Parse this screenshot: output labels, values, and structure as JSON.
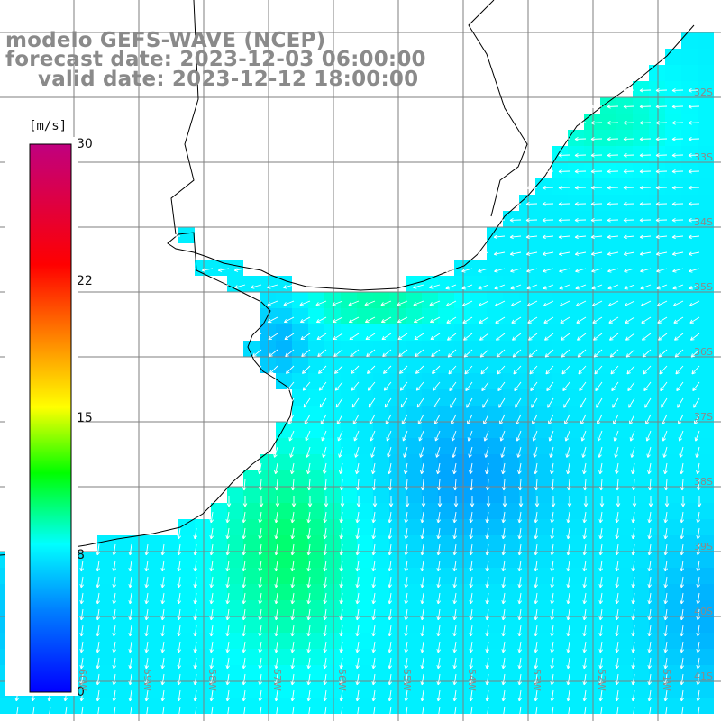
{
  "title": {
    "line1": "modelo GEFS-WAVE (NCEP)",
    "line2": "forecast date: 2023-12-03 06:00:00",
    "line3": "valid date: 2023-12-12 18:00:00"
  },
  "colorbar": {
    "unit": "[m/s]",
    "min": 0,
    "max": 30,
    "ticks": [
      "30",
      "22",
      "15",
      "8",
      "0"
    ],
    "tick_values": [
      30,
      22,
      15,
      8,
      0
    ],
    "colors": [
      "#0000ff",
      "#0080ff",
      "#00ffff",
      "#00ff00",
      "#ffff00",
      "#ff8000",
      "#ff0000",
      "#c0007f"
    ]
  },
  "map": {
    "land_color": "#ffffff",
    "coastline_color": "#000000",
    "grid_color": "#7f7f7f",
    "arrow_color": "#ffffff",
    "lat_labels": [
      "32S",
      "33S",
      "34S",
      "35S",
      "36S",
      "37S",
      "38S",
      "39S",
      "40S",
      "41S"
    ],
    "lon_labels": [
      "60W",
      "59W",
      "58W",
      "57W",
      "56W",
      "55W",
      "54W",
      "53W",
      "52W",
      "51W"
    ]
  }
}
